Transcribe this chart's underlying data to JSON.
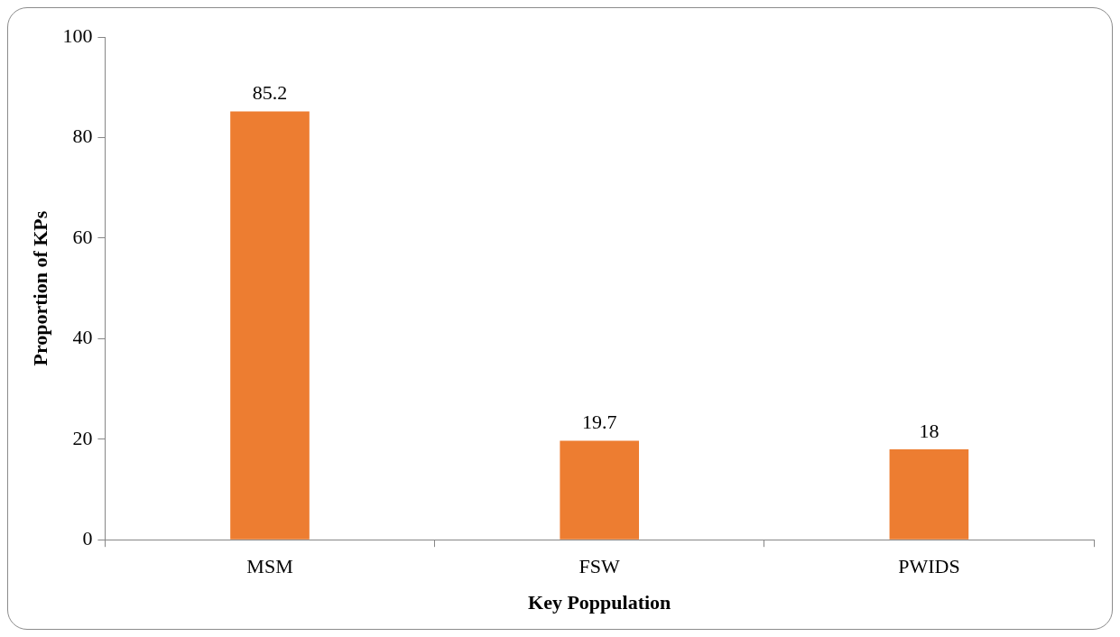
{
  "chart_data": {
    "type": "bar",
    "xlabel": "Key Poppulation",
    "ylabel": "Proportion of KPs",
    "categories": [
      "MSM",
      "FSW",
      "PWIDS"
    ],
    "values": [
      85.2,
      19.7,
      18
    ],
    "color": "#ed7d31",
    "ylim": [
      0,
      100
    ],
    "yticks": [
      0,
      20,
      40,
      60,
      80,
      100
    ],
    "grid": false,
    "data_labels": true,
    "legend": false
  }
}
